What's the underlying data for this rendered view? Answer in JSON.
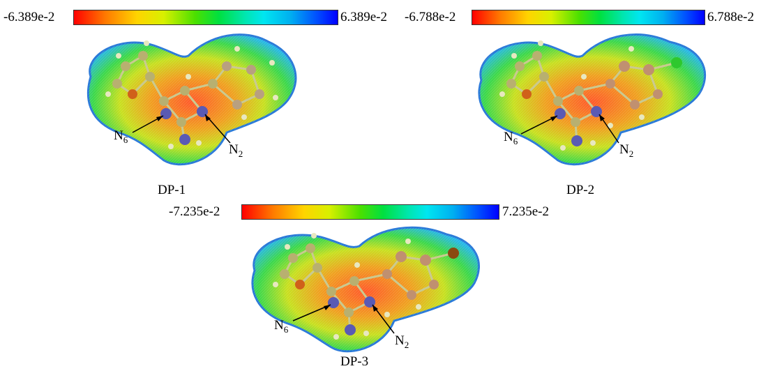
{
  "panels": [
    {
      "id": "dp1",
      "title": "DP-1",
      "scale_min": "-6.389e-2",
      "scale_max": "6.389e-2",
      "atoms": {
        "left": {
          "letter": "N",
          "sub": "6"
        },
        "right": {
          "letter": "N",
          "sub": "2"
        }
      }
    },
    {
      "id": "dp2",
      "title": "DP-2",
      "scale_min": "-6.788e-2",
      "scale_max": "6.788e-2",
      "atoms": {
        "left": {
          "letter": "N",
          "sub": "6"
        },
        "right": {
          "letter": "N",
          "sub": "2"
        }
      }
    },
    {
      "id": "dp3",
      "title": "DP-3",
      "scale_min": "-7.235e-2",
      "scale_max": "7.235e-2",
      "atoms": {
        "left": {
          "letter": "N",
          "sub": "6"
        },
        "right": {
          "letter": "N",
          "sub": "2"
        }
      }
    }
  ],
  "colors": {
    "negative": "#ff0000",
    "neutral": "#00e040",
    "positive": "#0000ff",
    "nitrogen": "#5a5ab4",
    "oxygen": "#d0601a",
    "chlorine": "#2ec82e",
    "bromine": "#8a4a10"
  }
}
